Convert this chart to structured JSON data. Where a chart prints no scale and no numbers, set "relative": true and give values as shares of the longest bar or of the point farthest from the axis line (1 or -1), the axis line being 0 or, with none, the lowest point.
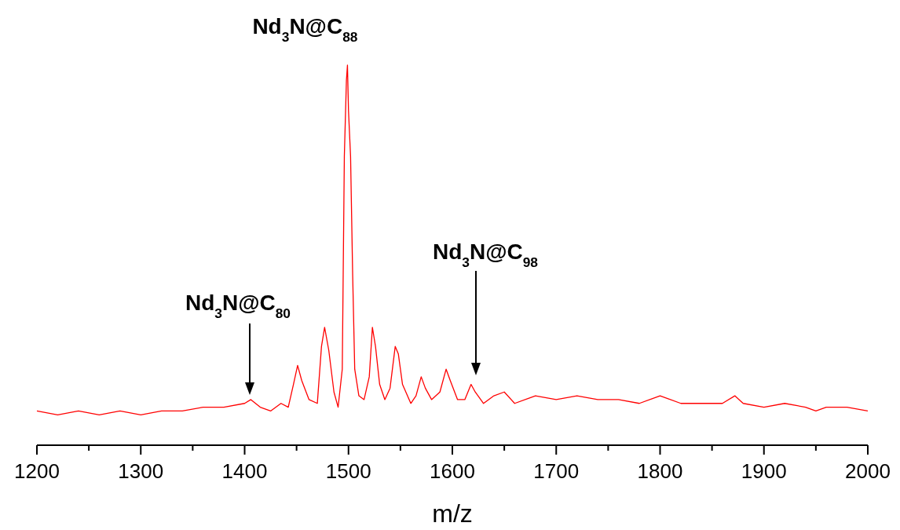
{
  "chart_data": {
    "type": "line",
    "relative": true,
    "xlabel": "m/z",
    "xlim": [
      1200,
      2000
    ],
    "xticks": [
      1200,
      {
        "value": 1250,
        "label": null
      },
      1300,
      {
        "value": 1350,
        "label": null
      },
      1400,
      {
        "value": 1450,
        "label": null
      },
      1500,
      {
        "value": 1550,
        "label": null
      },
      1600,
      {
        "value": 1650,
        "label": null
      },
      1700,
      {
        "value": 1750,
        "label": null
      },
      1800,
      {
        "value": 1850,
        "label": null
      },
      1900,
      {
        "value": 1950,
        "label": null
      },
      2000
    ],
    "tick_labels": "x",
    "annotations": [
      "Nd$_{3}$N@C$_{80}$",
      {
        "text": "Nd$_{3}$N@C$_{88}$",
        "x": 1499,
        "y": 1
      },
      "Nd$_{3}$N@C$_{98}$"
    ],
    "series": [
      {
        "color": "#ff0000",
        "x": [
          1200,
          1220,
          1240,
          1260,
          1280,
          1300,
          1320,
          1340,
          1360,
          1380,
          1400,
          1406,
          1415,
          1425,
          1435,
          1442,
          1447,
          1451,
          1455,
          1462,
          1470,
          1474,
          1477,
          1481,
          1486,
          1490,
          1494,
          1496,
          1498,
          1499,
          1500,
          1502,
          1504,
          1506,
          1510,
          1515,
          1520,
          1523,
          1526,
          1530,
          1535,
          1540,
          1545,
          1548,
          1552,
          1560,
          1565,
          1570,
          1574,
          1580,
          1588,
          1594,
          1598,
          1605,
          1612,
          1618,
          1622,
          1630,
          1640,
          1650,
          1660,
          1680,
          1700,
          1720,
          1740,
          1760,
          1780,
          1800,
          1820,
          1840,
          1860,
          1872,
          1880,
          1900,
          1920,
          1940,
          1950,
          1960,
          1980,
          2000
        ],
        "values": [
          0.09,
          0.08,
          0.09,
          0.08,
          0.09,
          0.08,
          0.09,
          0.09,
          0.1,
          0.1,
          0.11,
          0.12,
          0.1,
          0.09,
          0.11,
          0.1,
          0.16,
          0.21,
          0.17,
          0.12,
          0.11,
          0.26,
          0.31,
          0.25,
          0.14,
          0.1,
          0.2,
          0.76,
          0.96,
          1,
          0.88,
          0.76,
          0.45,
          0.2,
          0.13,
          0.12,
          0.18,
          0.31,
          0.26,
          0.16,
          0.12,
          0.15,
          0.26,
          0.24,
          0.16,
          0.11,
          0.13,
          0.18,
          0.15,
          0.12,
          0.14,
          0.2,
          0.17,
          0.12,
          0.12,
          0.16,
          0.14,
          0.11,
          0.13,
          0.14,
          0.11,
          0.13,
          0.12,
          0.13,
          0.12,
          0.12,
          0.11,
          0.13,
          0.11,
          0.11,
          0.11,
          0.13,
          0.11,
          0.1,
          0.11,
          0.1,
          0.09,
          0.1,
          0.1,
          0.09
        ]
      }
    ]
  }
}
